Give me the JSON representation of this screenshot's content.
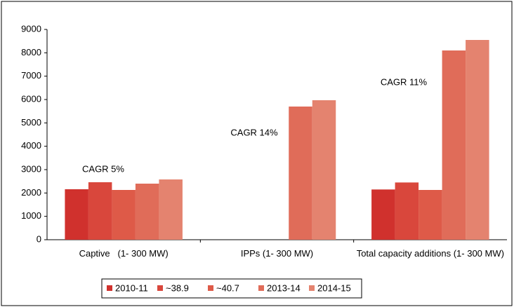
{
  "chart_data": {
    "type": "bar",
    "categories": [
      "Captive   (1- 300 MW)",
      "IPPs (1- 300 MW)",
      "Total capacity additions (1- 300 MW)"
    ],
    "series": [
      {
        "name": "2010-11",
        "color": "#d0312d",
        "values": [
          2160,
          0,
          2150
        ]
      },
      {
        "name": "~38.9",
        "color": "#d9473c",
        "values": [
          2460,
          0,
          2450
        ]
      },
      {
        "name": "~40.7",
        "color": "#de5a48",
        "values": [
          2130,
          0,
          2130
        ]
      },
      {
        "name": "2013-14",
        "color": "#e06c59",
        "values": [
          2400,
          5700,
          8100
        ]
      },
      {
        "name": "2014-15",
        "color": "#e4836f",
        "values": [
          2580,
          5970,
          8550
        ]
      }
    ],
    "annotations": [
      "CAGR 5%",
      "CAGR 14%",
      "CAGR 11%"
    ],
    "ylim": [
      0,
      9000
    ],
    "yticks": [
      0,
      1000,
      2000,
      3000,
      4000,
      5000,
      6000,
      7000,
      8000,
      9000
    ],
    "grid": false,
    "legend": "bottom"
  }
}
